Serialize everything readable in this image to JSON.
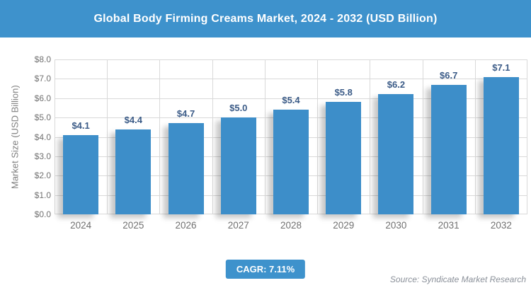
{
  "header": {
    "title": "Global Body Firming Creams Market, 2024 - 2032 (USD Billion)",
    "bg_color": "#3E92CC",
    "text_color": "#FFFFFF"
  },
  "chart_data": {
    "type": "bar",
    "title": "Global Body Firming Creams Market, 2024 - 2032 (USD Billion)",
    "categories": [
      "2024",
      "2025",
      "2026",
      "2027",
      "2028",
      "2029",
      "2030",
      "2031",
      "2032"
    ],
    "values": [
      4.1,
      4.4,
      4.7,
      5.0,
      5.4,
      5.8,
      6.2,
      6.7,
      7.1
    ],
    "value_labels": [
      "$4.1",
      "$4.4",
      "$4.7",
      "$5.0",
      "$5.4",
      "$5.8",
      "$6.2",
      "$6.7",
      "$7.1"
    ],
    "xlabel": "",
    "ylabel": "Market Size (USD Billion)",
    "ylim": [
      0,
      8
    ],
    "ytick_step": 1,
    "ytick_labels": [
      "$0.0",
      "$1.0",
      "$2.0",
      "$3.0",
      "$4.0",
      "$5.0",
      "$6.0",
      "$7.0",
      "$8.0"
    ],
    "grid": true,
    "legend": "none",
    "bar_color": "#3D8EC9",
    "value_label_color": "#3B5B87",
    "grid_color": "#D9D9D9",
    "axis_text_color": "#707070"
  },
  "footer": {
    "cagr_label": "CAGR: 7.11%",
    "cagr_bg_color": "#3E92CC",
    "source": "Source: Syndicate Market Research"
  }
}
